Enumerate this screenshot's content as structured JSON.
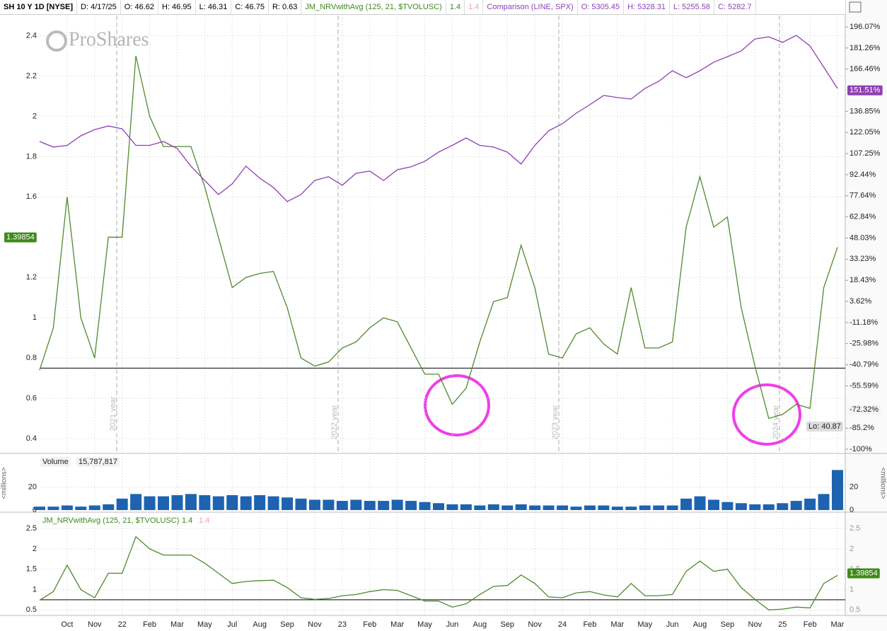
{
  "chart_data": [
    {
      "type": "line",
      "header": [
        "SH 10 Y 1D [NYSE]",
        "D: 4/17/25",
        "O: 46.62",
        "H: 46.95",
        "L: 46.31",
        "C: 46.75",
        "R: 0.63"
      ],
      "watermark": "ProShares",
      "categories": [
        null,
        null,
        "Oct",
        null,
        "Nov",
        null,
        "22",
        null,
        "Feb",
        null,
        "Mar",
        null,
        "May",
        null,
        "Jul",
        null,
        "Aug",
        null,
        "Sep",
        null,
        "Nov",
        null,
        "23",
        null,
        "Feb",
        null,
        "Mar",
        null,
        "May",
        null,
        "Jun",
        null,
        "Aug",
        null,
        "Sep",
        null,
        "Nov",
        null,
        "24",
        null,
        "Feb",
        null,
        "Mar",
        null,
        "May",
        null,
        "Jun",
        null,
        "Aug",
        null,
        "Sep",
        null,
        "Nov",
        null,
        "25",
        null,
        "Feb",
        null,
        "Mar"
      ],
      "series": [
        {
          "name": "JM_NRVwithAvg (125, 21, $TVOLUSC)",
          "params": [
            "1.4",
            "1.4"
          ],
          "color": "#4f8a2e",
          "values": [
            0.74,
            0.95,
            1.6,
            1.0,
            0.8,
            1.4,
            1.4,
            2.3,
            2.0,
            1.85,
            1.85,
            1.85,
            1.65,
            1.4,
            1.15,
            1.2,
            1.22,
            1.23,
            1.05,
            0.8,
            0.76,
            0.78,
            0.85,
            0.88,
            0.95,
            1.0,
            0.98,
            0.85,
            0.72,
            0.72,
            0.57,
            0.65,
            0.88,
            1.08,
            1.1,
            1.36,
            1.15,
            0.82,
            0.8,
            0.92,
            0.95,
            0.87,
            0.82,
            1.15,
            0.85,
            0.85,
            0.88,
            1.45,
            1.7,
            1.45,
            1.5,
            1.05,
            0.76,
            0.5,
            0.52,
            0.57,
            0.55,
            1.15,
            1.35
          ]
        },
        {
          "name": "Comparison (LINE, SPX)",
          "ohlc": [
            "O: 5305.45",
            "H: 5328.31",
            "L: 5255.58",
            "C: 5282.7"
          ],
          "color": "#8e3fb4",
          "axis": "y2",
          "values": [
            115.7,
            111.8,
            113,
            119.7,
            124,
            126.6,
            124.6,
            113,
            113,
            115.7,
            110.8,
            98.4,
            88.4,
            78.5,
            86,
            98.4,
            90,
            83.5,
            73.6,
            78.5,
            88.4,
            91,
            85,
            93.4,
            95,
            88.4,
            95.9,
            98,
            101.8,
            108.3,
            113,
            118.2,
            113,
            111.8,
            108.3,
            99.9,
            113,
            123.2,
            128.1,
            135.5,
            141.5,
            148,
            146.5,
            145.5,
            152.9,
            157.9,
            165.3,
            160.4,
            165.3,
            171.3,
            175.2,
            179.2,
            187.6,
            189.1,
            185.2,
            190.1,
            182.7,
            167.8,
            152.9
          ]
        }
      ],
      "ylim": [
        0.33,
        2.5
      ],
      "yticks": [
        2.4,
        2.2,
        2,
        1.8,
        1.6,
        1.2,
        1,
        0.8,
        0.6,
        0.4
      ],
      "y2lim": [
        -102.5,
        204
      ],
      "y2ticks": [
        {
          "value": 196.07,
          "label": "196.07%"
        },
        {
          "value": 181.26,
          "label": "181.26%"
        },
        {
          "value": 166.46,
          "label": "166.46%"
        },
        {
          "value": 136.85,
          "label": "136.85%"
        },
        {
          "value": 122.05,
          "label": "122.05%"
        },
        {
          "value": 107.25,
          "label": "107.25%"
        },
        {
          "value": 92.44,
          "label": "92.44%"
        },
        {
          "value": 77.64,
          "label": "77.64%"
        },
        {
          "value": 62.84,
          "label": "62.84%"
        },
        {
          "value": 48.03,
          "label": "48.03%"
        },
        {
          "value": 33.23,
          "label": "33.23%"
        },
        {
          "value": 18.43,
          "label": "18.43%"
        },
        {
          "value": 3.62,
          "label": "3.62%"
        },
        {
          "value": -11.18,
          "label": "-11.18%"
        },
        {
          "value": -25.98,
          "label": "-25.98%"
        },
        {
          "value": -40.79,
          "label": "-40.79%"
        },
        {
          "value": -55.59,
          "label": "-55.59%"
        },
        {
          "value": -85.2,
          "label": "-85.2%"
        },
        {
          "value": -100,
          "label": "-100%"
        }
      ],
      "hline": 0.75,
      "grid": true,
      "last_value": 1.39854,
      "y2_last": {
        "value": 151.51,
        "label": "151.51%"
      },
      "y2_marker": {
        "value": -72.32,
        "label": "-72.32%"
      },
      "low_label": "Lo: 40.87",
      "year_labels": [
        "2021 year",
        "2022 year",
        "2023 year",
        "2024 year"
      ]
    },
    {
      "type": "bar",
      "title": "Volume",
      "last_volume": "15,787,817",
      "axis_label": "<millions>",
      "color": "#1e63b0",
      "values": [
        3,
        3,
        4,
        3,
        4,
        5,
        10,
        14,
        12,
        12,
        13,
        14,
        13,
        12,
        13,
        12,
        13,
        12,
        11,
        10,
        9,
        9,
        8,
        9,
        8,
        8,
        9,
        8,
        7,
        6,
        5,
        5,
        4,
        5,
        4,
        5,
        4,
        4,
        4,
        3,
        4,
        4,
        3,
        3,
        4,
        4,
        4,
        10,
        12,
        9,
        7,
        6,
        5,
        5,
        6,
        8,
        10,
        14,
        35
      ],
      "ylim": [
        0,
        47
      ],
      "yticks": [
        0,
        20
      ]
    },
    {
      "type": "line",
      "title": "JM_NRVwithAvg (125, 21, $TVOLUSC)",
      "params": [
        "1.4",
        "1.4"
      ],
      "series": [
        {
          "color": "#4f8a2e",
          "values": [
            0.74,
            0.95,
            1.6,
            1.0,
            0.8,
            1.4,
            1.4,
            2.3,
            2.0,
            1.85,
            1.85,
            1.85,
            1.65,
            1.4,
            1.15,
            1.2,
            1.22,
            1.23,
            1.05,
            0.8,
            0.76,
            0.78,
            0.85,
            0.88,
            0.95,
            1.0,
            0.98,
            0.85,
            0.72,
            0.72,
            0.57,
            0.65,
            0.88,
            1.08,
            1.1,
            1.36,
            1.15,
            0.82,
            0.8,
            0.92,
            0.95,
            0.87,
            0.82,
            1.15,
            0.85,
            0.85,
            0.88,
            1.45,
            1.7,
            1.45,
            1.5,
            1.05,
            0.76,
            0.5,
            0.52,
            0.57,
            0.55,
            1.15,
            1.35
          ]
        }
      ],
      "ylim": [
        0.4,
        2.85
      ],
      "yticks": [
        2.5,
        2,
        1.5,
        1,
        0.5
      ],
      "hline": 0.75,
      "last_value": 1.39854
    }
  ]
}
